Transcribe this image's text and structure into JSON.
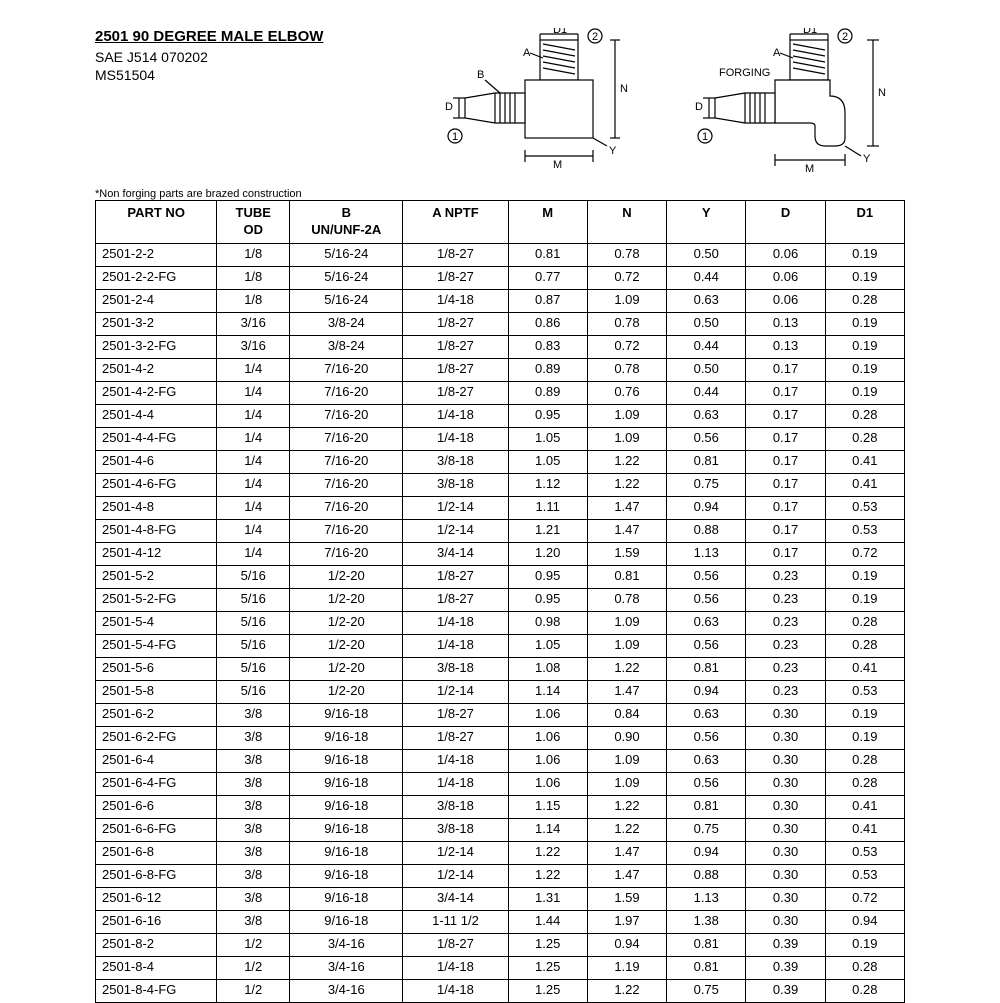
{
  "header": {
    "title": "2501 90 DEGREE MALE ELBOW",
    "sub1": "SAE J514 070202",
    "sub2": "MS51504",
    "footnote": "*Non forging parts are brazed construction"
  },
  "diagram": {
    "labels": [
      "A",
      "B",
      "D",
      "D1",
      "M",
      "N",
      "Y",
      "1",
      "2",
      "FORGING"
    ]
  },
  "table": {
    "columns": [
      "PART NO",
      "TUBE\nOD",
      "B\nUN/UNF-2A",
      "A NPTF",
      "M",
      "N",
      "Y",
      "D",
      "D1"
    ],
    "rows": [
      [
        "2501-2-2",
        "1/8",
        "5/16-24",
        "1/8-27",
        "0.81",
        "0.78",
        "0.50",
        "0.06",
        "0.19"
      ],
      [
        "2501-2-2-FG",
        "1/8",
        "5/16-24",
        "1/8-27",
        "0.77",
        "0.72",
        "0.44",
        "0.06",
        "0.19"
      ],
      [
        "2501-2-4",
        "1/8",
        "5/16-24",
        "1/4-18",
        "0.87",
        "1.09",
        "0.63",
        "0.06",
        "0.28"
      ],
      [
        "2501-3-2",
        "3/16",
        "3/8-24",
        "1/8-27",
        "0.86",
        "0.78",
        "0.50",
        "0.13",
        "0.19"
      ],
      [
        "2501-3-2-FG",
        "3/16",
        "3/8-24",
        "1/8-27",
        "0.83",
        "0.72",
        "0.44",
        "0.13",
        "0.19"
      ],
      [
        "2501-4-2",
        "1/4",
        "7/16-20",
        "1/8-27",
        "0.89",
        "0.78",
        "0.50",
        "0.17",
        "0.19"
      ],
      [
        "2501-4-2-FG",
        "1/4",
        "7/16-20",
        "1/8-27",
        "0.89",
        "0.76",
        "0.44",
        "0.17",
        "0.19"
      ],
      [
        "2501-4-4",
        "1/4",
        "7/16-20",
        "1/4-18",
        "0.95",
        "1.09",
        "0.63",
        "0.17",
        "0.28"
      ],
      [
        "2501-4-4-FG",
        "1/4",
        "7/16-20",
        "1/4-18",
        "1.05",
        "1.09",
        "0.56",
        "0.17",
        "0.28"
      ],
      [
        "2501-4-6",
        "1/4",
        "7/16-20",
        "3/8-18",
        "1.05",
        "1.22",
        "0.81",
        "0.17",
        "0.41"
      ],
      [
        "2501-4-6-FG",
        "1/4",
        "7/16-20",
        "3/8-18",
        "1.12",
        "1.22",
        "0.75",
        "0.17",
        "0.41"
      ],
      [
        "2501-4-8",
        "1/4",
        "7/16-20",
        "1/2-14",
        "1.11",
        "1.47",
        "0.94",
        "0.17",
        "0.53"
      ],
      [
        "2501-4-8-FG",
        "1/4",
        "7/16-20",
        "1/2-14",
        "1.21",
        "1.47",
        "0.88",
        "0.17",
        "0.53"
      ],
      [
        "2501-4-12",
        "1/4",
        "7/16-20",
        "3/4-14",
        "1.20",
        "1.59",
        "1.13",
        "0.17",
        "0.72"
      ],
      [
        "2501-5-2",
        "5/16",
        "1/2-20",
        "1/8-27",
        "0.95",
        "0.81",
        "0.56",
        "0.23",
        "0.19"
      ],
      [
        "2501-5-2-FG",
        "5/16",
        "1/2-20",
        "1/8-27",
        "0.95",
        "0.78",
        "0.56",
        "0.23",
        "0.19"
      ],
      [
        "2501-5-4",
        "5/16",
        "1/2-20",
        "1/4-18",
        "0.98",
        "1.09",
        "0.63",
        "0.23",
        "0.28"
      ],
      [
        "2501-5-4-FG",
        "5/16",
        "1/2-20",
        "1/4-18",
        "1.05",
        "1.09",
        "0.56",
        "0.23",
        "0.28"
      ],
      [
        "2501-5-6",
        "5/16",
        "1/2-20",
        "3/8-18",
        "1.08",
        "1.22",
        "0.81",
        "0.23",
        "0.41"
      ],
      [
        "2501-5-8",
        "5/16",
        "1/2-20",
        "1/2-14",
        "1.14",
        "1.47",
        "0.94",
        "0.23",
        "0.53"
      ],
      [
        "2501-6-2",
        "3/8",
        "9/16-18",
        "1/8-27",
        "1.06",
        "0.84",
        "0.63",
        "0.30",
        "0.19"
      ],
      [
        "2501-6-2-FG",
        "3/8",
        "9/16-18",
        "1/8-27",
        "1.06",
        "0.90",
        "0.56",
        "0.30",
        "0.19"
      ],
      [
        "2501-6-4",
        "3/8",
        "9/16-18",
        "1/4-18",
        "1.06",
        "1.09",
        "0.63",
        "0.30",
        "0.28"
      ],
      [
        "2501-6-4-FG",
        "3/8",
        "9/16-18",
        "1/4-18",
        "1.06",
        "1.09",
        "0.56",
        "0.30",
        "0.28"
      ],
      [
        "2501-6-6",
        "3/8",
        "9/16-18",
        "3/8-18",
        "1.15",
        "1.22",
        "0.81",
        "0.30",
        "0.41"
      ],
      [
        "2501-6-6-FG",
        "3/8",
        "9/16-18",
        "3/8-18",
        "1.14",
        "1.22",
        "0.75",
        "0.30",
        "0.41"
      ],
      [
        "2501-6-8",
        "3/8",
        "9/16-18",
        "1/2-14",
        "1.22",
        "1.47",
        "0.94",
        "0.30",
        "0.53"
      ],
      [
        "2501-6-8-FG",
        "3/8",
        "9/16-18",
        "1/2-14",
        "1.22",
        "1.47",
        "0.88",
        "0.30",
        "0.53"
      ],
      [
        "2501-6-12",
        "3/8",
        "9/16-18",
        "3/4-14",
        "1.31",
        "1.59",
        "1.13",
        "0.30",
        "0.72"
      ],
      [
        "2501-6-16",
        "3/8",
        "9/16-18",
        "1-11 1/2",
        "1.44",
        "1.97",
        "1.38",
        "0.30",
        "0.94"
      ],
      [
        "2501-8-2",
        "1/2",
        "3/4-16",
        "1/8-27",
        "1.25",
        "0.94",
        "0.81",
        "0.39",
        "0.19"
      ],
      [
        "2501-8-4",
        "1/2",
        "3/4-16",
        "1/4-18",
        "1.25",
        "1.19",
        "0.81",
        "0.39",
        "0.28"
      ],
      [
        "2501-8-4-FG",
        "1/2",
        "3/4-16",
        "1/4-18",
        "1.25",
        "1.22",
        "0.75",
        "0.39",
        "0.28"
      ]
    ]
  }
}
